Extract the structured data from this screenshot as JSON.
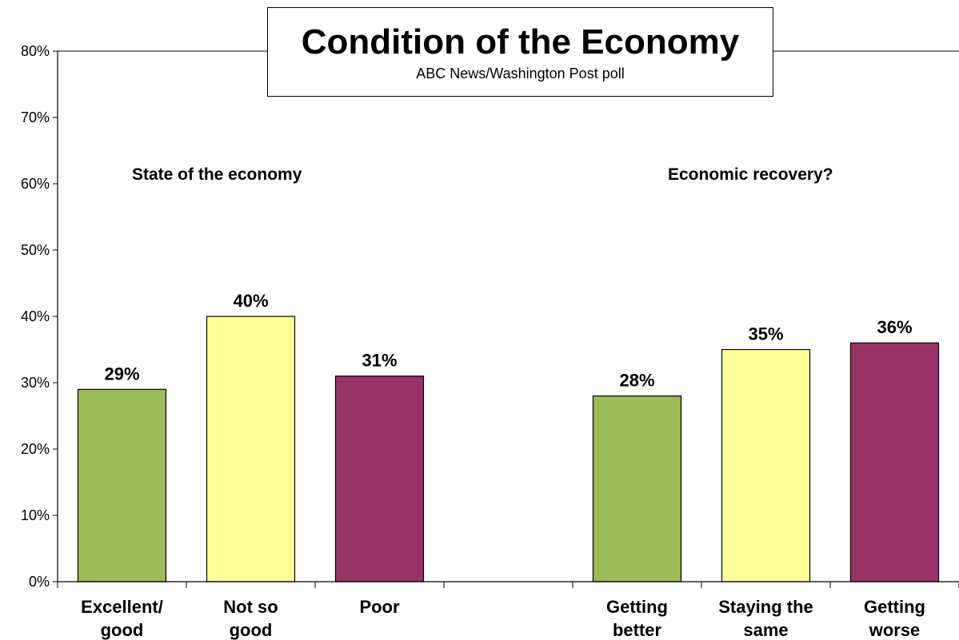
{
  "chart_data": {
    "type": "bar",
    "title": "Condition of the Economy",
    "subtitle": "ABC News/Washington  Post poll",
    "ylim": [
      0,
      80
    ],
    "yticks": [
      "0%",
      "10%",
      "20%",
      "30%",
      "40%",
      "50%",
      "60%",
      "70%",
      "80%"
    ],
    "grid": false,
    "value_suffix": "%",
    "groups": [
      {
        "label": "State of the economy",
        "categories": [
          [
            "Excellent/",
            "good"
          ],
          [
            "Not so",
            "good"
          ],
          [
            "Poor"
          ]
        ],
        "values": [
          29,
          40,
          31
        ],
        "value_labels": [
          "29%",
          "40%",
          "31%"
        ]
      },
      {
        "label": "Economic recovery?",
        "categories": [
          [
            "Getting",
            "better"
          ],
          [
            "Staying the",
            "same"
          ],
          [
            "Getting",
            "worse"
          ]
        ],
        "values": [
          28,
          35,
          36
        ],
        "value_labels": [
          "28%",
          "35%",
          "36%"
        ]
      }
    ],
    "colors": [
      "#9bbb59",
      "#ffff99",
      "#993366"
    ]
  }
}
